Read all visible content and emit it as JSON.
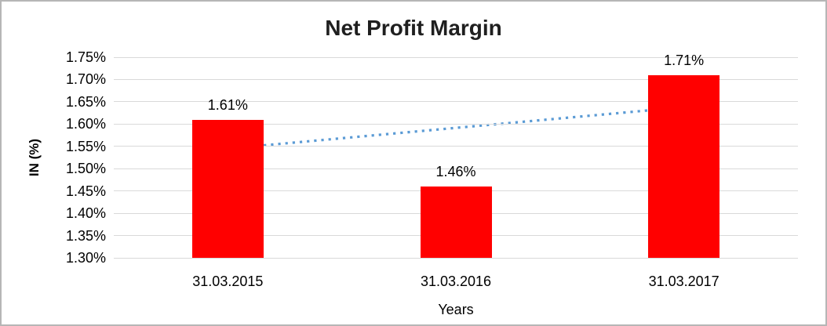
{
  "chart_data": {
    "type": "bar",
    "title": "Net Profit Margin",
    "xlabel": "Years",
    "ylabel": "IN (%)",
    "categories": [
      "31.03.2015",
      "31.03.2016",
      "31.03.2017"
    ],
    "values": [
      1.61,
      1.46,
      1.71
    ],
    "data_labels": [
      "1.61%",
      "1.46%",
      "1.71%"
    ],
    "ylim": [
      1.3,
      1.75
    ],
    "ytick_step": 0.05,
    "ytick_labels": [
      "1.30%",
      "1.35%",
      "1.40%",
      "1.45%",
      "1.50%",
      "1.55%",
      "1.60%",
      "1.65%",
      "1.70%",
      "1.75%"
    ],
    "grid": "horizontal",
    "legend": "none",
    "bar_color": "#ff0000",
    "gridline_color": "#d9d9d9",
    "trendline": {
      "style": "dotted",
      "color": "#5b9bd5",
      "start_value": 1.545,
      "end_value": 1.638
    }
  }
}
